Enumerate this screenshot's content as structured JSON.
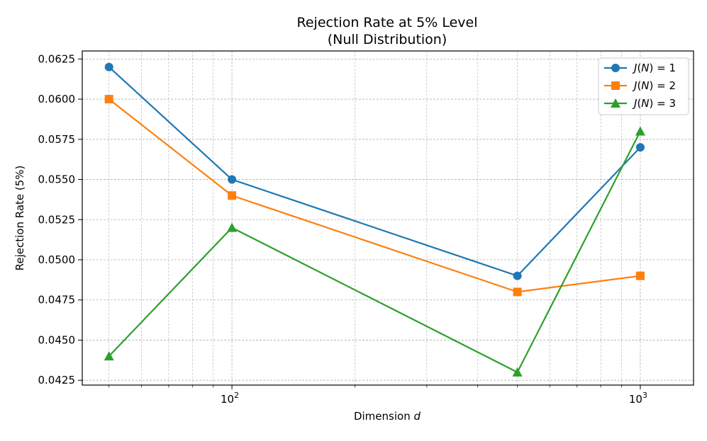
{
  "chart_data": {
    "type": "line",
    "title": "Rejection Rate at 5% Level",
    "subtitle": "(Null Distribution)",
    "xlabel": "Dimension",
    "xlabel_var": "d",
    "ylabel": "Rejection Rate (5%)",
    "xscale": "log",
    "xlim": [
      43,
      1350
    ],
    "ylim": [
      0.0422,
      0.063
    ],
    "grid": true,
    "legend_position": "top-right",
    "x": [
      50,
      100,
      500,
      1000
    ],
    "y_ticks": [
      0.0425,
      0.045,
      0.0475,
      0.05,
      0.0525,
      0.055,
      0.0575,
      0.06,
      0.0625
    ],
    "y_tick_labels": [
      "0.0425",
      "0.0450",
      "0.0475",
      "0.0500",
      "0.0525",
      "0.0550",
      "0.0575",
      "0.0600",
      "0.0625"
    ],
    "x_major_ticks": [
      {
        "value": 100,
        "base": "10",
        "exp": "2"
      },
      {
        "value": 1000,
        "base": "10",
        "exp": "3"
      }
    ],
    "series": [
      {
        "name": "J(N) = 1",
        "label_fn": "J",
        "label_arg": "N",
        "label_eq": " = 1",
        "color": "#1f77b4",
        "marker": "circle",
        "values": [
          0.062,
          0.055,
          0.049,
          0.057
        ]
      },
      {
        "name": "J(N) = 2",
        "label_fn": "J",
        "label_arg": "N",
        "label_eq": " = 2",
        "color": "#ff7f0e",
        "marker": "square",
        "values": [
          0.06,
          0.054,
          0.048,
          0.049
        ]
      },
      {
        "name": "J(N) = 3",
        "label_fn": "J",
        "label_arg": "N",
        "label_eq": " = 3",
        "color": "#2ca02c",
        "marker": "triangle",
        "values": [
          0.044,
          0.052,
          0.043,
          0.058
        ]
      }
    ]
  }
}
